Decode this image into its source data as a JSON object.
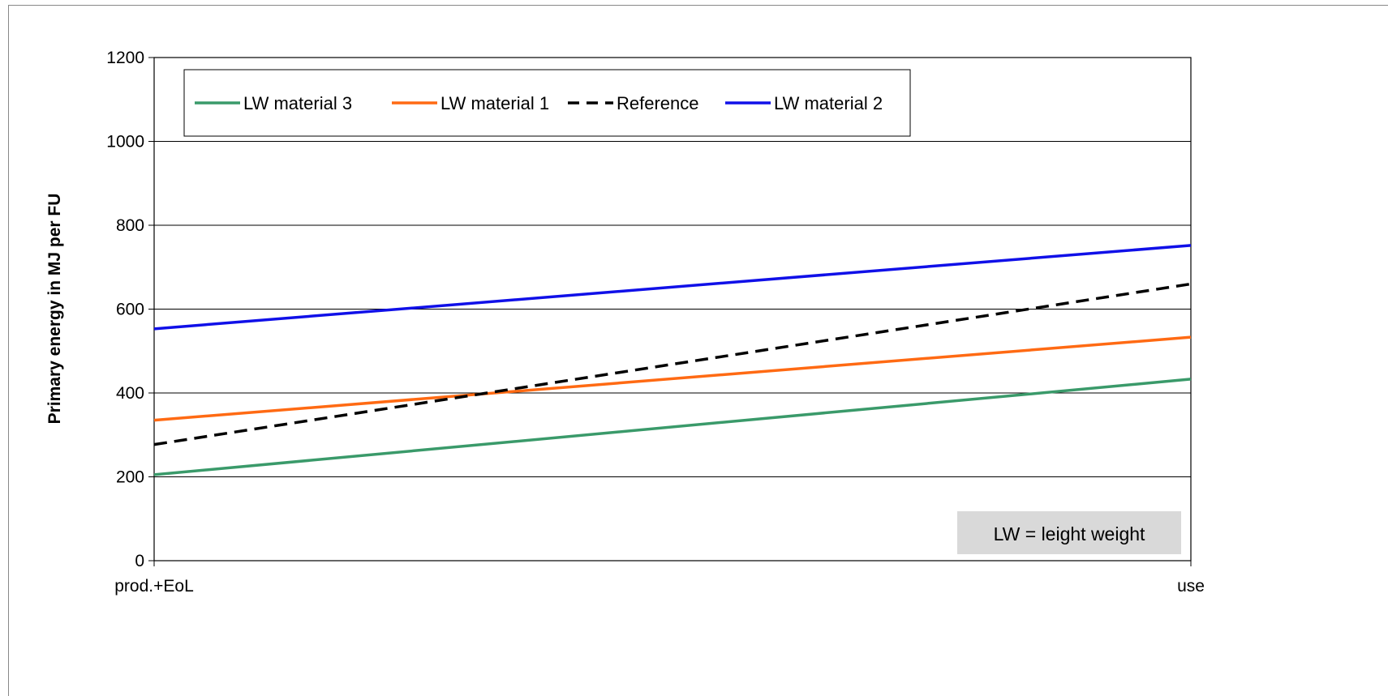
{
  "chart_data": {
    "type": "line",
    "title": "",
    "xlabel": "",
    "ylabel": "Primary energy in MJ per FU",
    "categories": [
      "prod.+EoL",
      "use"
    ],
    "ylim": [
      0,
      1200
    ],
    "yticks": [
      0,
      200,
      400,
      600,
      800,
      1000,
      1200
    ],
    "grid": "horizontal",
    "legend_position": "top-left",
    "series": [
      {
        "name": "LW material 3",
        "values": [
          205,
          433
        ],
        "color": "#3a9a6a",
        "dash": "solid"
      },
      {
        "name": "LW material 1",
        "values": [
          335,
          533
        ],
        "color": "#ff6a13",
        "dash": "solid"
      },
      {
        "name": "Reference",
        "values": [
          277,
          660
        ],
        "color": "#000000",
        "dash": "dashed"
      },
      {
        "name": "LW material 2",
        "values": [
          553,
          752
        ],
        "color": "#1010e8",
        "dash": "solid"
      }
    ],
    "annotation": "LW = leight weight"
  }
}
